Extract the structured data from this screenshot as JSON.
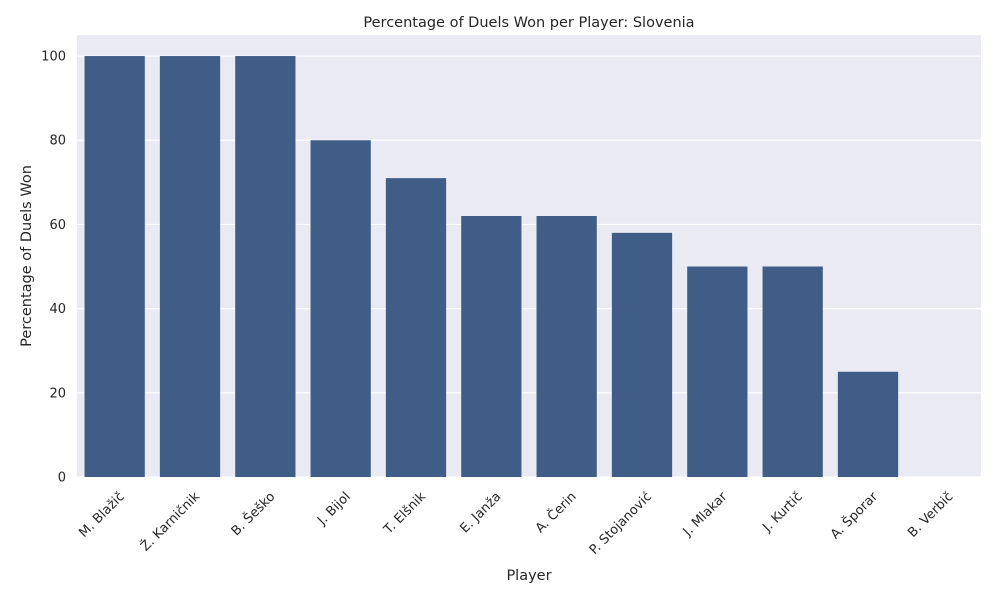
{
  "chart_data": {
    "type": "bar",
    "title": "Percentage of Duels Won per Player: Slovenia",
    "xlabel": "Player",
    "ylabel": "Percentage of Duels Won",
    "categories": [
      "M. Blažič",
      "Ž. Karničnik",
      "B. Šeško",
      "J. Bijol",
      "T. Elšnik",
      "E. Janža",
      "A. Čerin",
      "P. Stojanović",
      "J. Mlakar",
      "J. Kurtič",
      "A. Šporar",
      "B. Verbič"
    ],
    "values": [
      100,
      100,
      100,
      80,
      71,
      62,
      62,
      58,
      50,
      50,
      25,
      0
    ],
    "ylim": [
      0,
      105
    ],
    "yticks": [
      0,
      20,
      40,
      60,
      80,
      100
    ],
    "grid": true,
    "bar_color": "#3f5d87",
    "background_color": "#eaeaf2"
  }
}
